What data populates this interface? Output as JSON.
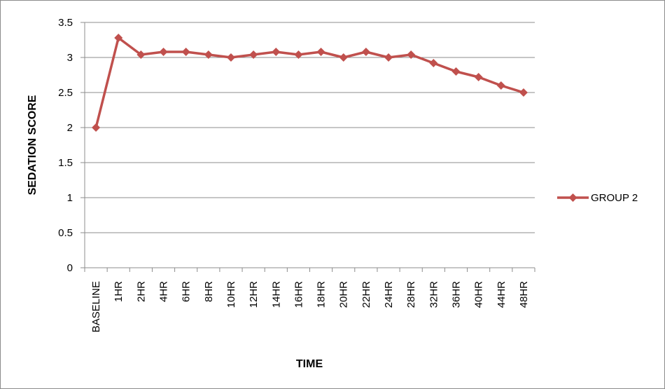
{
  "chart_data": {
    "type": "line",
    "title": "",
    "xlabel": "TIME",
    "ylabel": "SEDATION SCORE",
    "ylim": [
      0,
      3.5
    ],
    "y_ticks": [
      "0",
      "0.5",
      "1",
      "1.5",
      "2",
      "2.5",
      "3",
      "3.5"
    ],
    "grid": "horizontal",
    "legend_position": "right",
    "categories": [
      "BASELINE",
      "1HR",
      "2HR",
      "4HR",
      "6HR",
      "8HR",
      "10HR",
      "12HR",
      "14HR",
      "16HR",
      "18HR",
      "20HR",
      "22HR",
      "24HR",
      "28HR",
      "32HR",
      "36HR",
      "40HR",
      "44HR",
      "48HR"
    ],
    "series": [
      {
        "name": "GROUP 2",
        "color": "#c0504d",
        "marker": "diamond",
        "values": [
          2.0,
          3.28,
          3.04,
          3.08,
          3.08,
          3.04,
          3.0,
          3.04,
          3.08,
          3.04,
          3.08,
          3.0,
          3.08,
          3.0,
          3.04,
          2.92,
          2.8,
          2.72,
          2.6,
          2.5
        ]
      }
    ]
  }
}
